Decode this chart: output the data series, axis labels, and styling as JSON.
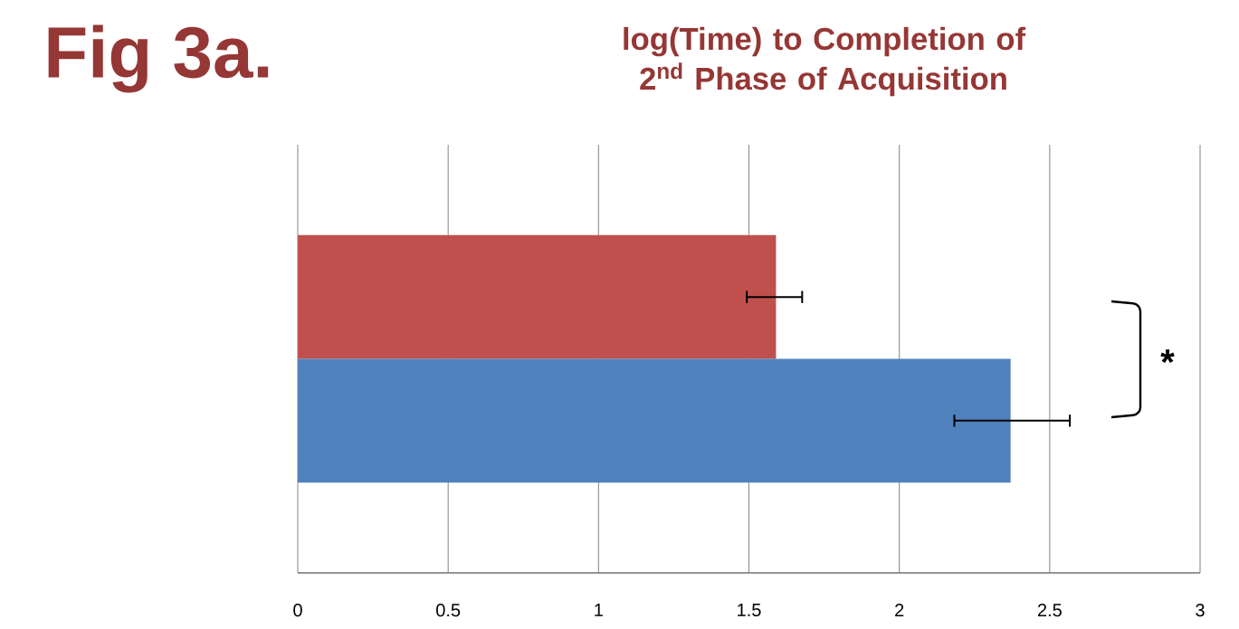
{
  "chart_data": {
    "type": "bar",
    "orientation": "horizontal",
    "title": "log(Time) to Completion of 2$^{nd}$ Phase of Acquisition",
    "categories": [
      null,
      null
    ],
    "values": [
      1.59,
      2.37
    ],
    "colors": [
      "#c0504d",
      "#4f81bd"
    ],
    "errors": [
      [
        1.49,
        1.68
      ],
      [
        2.18,
        2.57
      ]
    ],
    "xlim": [
      0,
      3
    ],
    "xticks": [
      0,
      0.5,
      1,
      1.5,
      2,
      2.5,
      3
    ],
    "grid": "x",
    "tick_labels": "x",
    "annotations": [
      "Fig 3a.",
      "*"
    ]
  }
}
